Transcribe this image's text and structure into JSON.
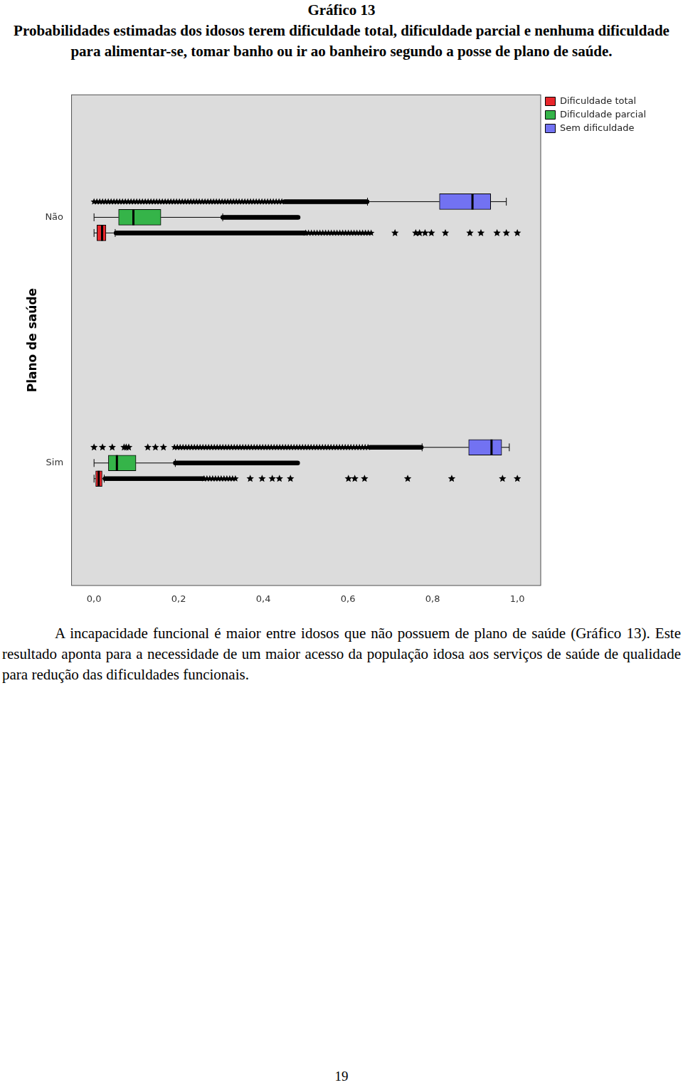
{
  "header": {
    "label": "Gráfico 13",
    "title": "Probabilidades estimadas dos idosos terem dificuldade total, dificuldade parcial e nenhuma dificuldade para alimentar-se, tomar banho ou ir ao banheiro segundo a posse de plano de saúde."
  },
  "chart_data": {
    "type": "boxplot",
    "orientation": "horizontal",
    "y_label": "Plano de saúde",
    "categories": [
      "Não",
      "Sim"
    ],
    "xlim": [
      -0.054,
      1.056
    ],
    "xticks": [
      {
        "value": 0,
        "label": "0,0"
      },
      {
        "value": 0.2,
        "label": "0,2"
      },
      {
        "value": 0.4,
        "label": "0,4"
      },
      {
        "value": 0.6,
        "label": "0,6"
      },
      {
        "value": 0.8,
        "label": "0,8"
      },
      {
        "value": 1,
        "label": "1,0"
      }
    ],
    "grid": false,
    "legend": "upper right",
    "series": [
      {
        "name": "Dificuldade total",
        "color": "#e8262b",
        "boxes": [
          {
            "min": 0.0,
            "q1": 0.007,
            "median": 0.019,
            "q3": 0.028,
            "max": 0.05,
            "outlier_range": [
              0.052,
              0.5
            ],
            "extreme_range": [
              0.5,
              0.66
            ],
            "extreme_points": [
              0.711,
              0.76,
              0.769,
              0.782,
              0.797,
              0.83,
              0.888,
              0.914,
              0.952,
              0.974,
              1.0
            ]
          },
          {
            "min": 0.0,
            "q1": 0.004,
            "median": 0.011,
            "q3": 0.019,
            "max": 0.024,
            "outlier_range": [
              0.026,
              0.26
            ],
            "extreme_range": [
              0.26,
              0.34
            ],
            "extreme_points": [
              0.369,
              0.397,
              0.421,
              0.438,
              0.464,
              0.601,
              0.616,
              0.639,
              0.741,
              0.845,
              0.965,
              1.0
            ]
          }
        ]
      },
      {
        "name": "Dificuldade parcial",
        "color": "#35b449",
        "boxes": [
          {
            "min": 0.0,
            "q1": 0.058,
            "median": 0.093,
            "q3": 0.158,
            "max": 0.304,
            "outlier_range": [
              0.304,
              0.484
            ]
          },
          {
            "min": 0.0,
            "q1": 0.034,
            "median": 0.054,
            "q3": 0.099,
            "max": 0.192,
            "outlier_range": [
              0.192,
              0.484
            ]
          }
        ]
      },
      {
        "name": "Sem dificuldade",
        "color": "#7272f2",
        "boxes": [
          {
            "min": 0.646,
            "q1": 0.816,
            "median": 0.894,
            "q3": 0.937,
            "max": 0.974,
            "outlier_range": [
              0.45,
              0.645
            ],
            "extreme_range": [
              0.0,
              0.45
            ]
          },
          {
            "min": 0.775,
            "q1": 0.885,
            "median": 0.939,
            "q3": 0.963,
            "max": 0.981,
            "outlier_range": [
              0.652,
              0.775
            ],
            "extreme_range": [
              0.19,
              0.652
            ],
            "extreme_points": [
              0.0,
              0.02,
              0.043,
              0.071,
              0.076,
              0.082,
              0.127,
              0.145,
              0.164
            ]
          }
        ]
      }
    ]
  },
  "paragraph": "A incapacidade funcional é maior entre idosos que não possuem de plano de saúde (Gráfico 13). Este resultado aponta para a necessidade de um maior acesso da população idosa aos serviços de saúde de qualidade para redução das dificuldades funcionais.",
  "page_number": 19
}
